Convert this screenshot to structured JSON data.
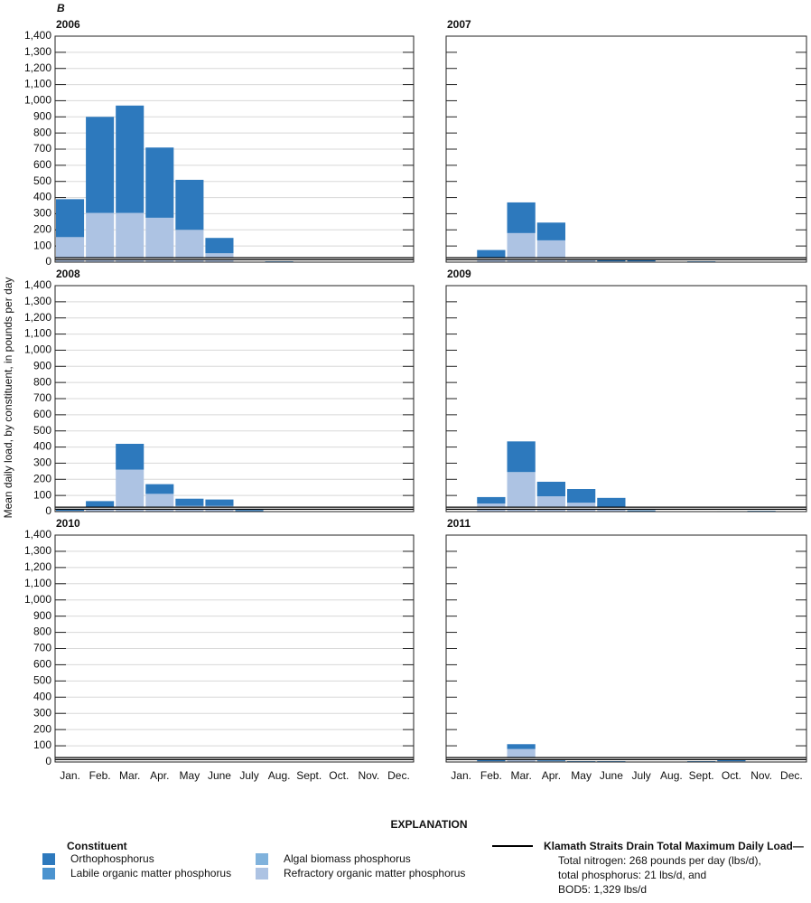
{
  "panel_label": "B",
  "chart_data": {
    "type": "bar",
    "stacked": true,
    "ylabel": "Mean daily load, by constituent, in pounds per day",
    "categories": [
      "Jan.",
      "Feb.",
      "Mar.",
      "Apr.",
      "May",
      "June",
      "July",
      "Aug.",
      "Sept.",
      "Oct.",
      "Nov.",
      "Dec."
    ],
    "ylim": [
      0,
      1400
    ],
    "yticks": [
      0,
      100,
      200,
      300,
      400,
      500,
      600,
      700,
      800,
      900,
      {
        "value": 1000,
        "label": "1,000"
      },
      {
        "value": 1100,
        "label": "1,100"
      },
      {
        "value": 1200,
        "label": "1,200"
      },
      {
        "value": 1300,
        "label": "1,300"
      },
      {
        "value": 1400,
        "label": "1,400"
      }
    ],
    "series": [
      {
        "name": "Orthophosphorus",
        "color": "#2d79bd"
      },
      {
        "name": "Labile organic matter phosphorus",
        "color": "#4b93cf"
      },
      {
        "name": "Algal biomass phosphorus",
        "color": "#80b2dc"
      },
      {
        "name": "Refractory organic matter phosphorus",
        "color": "#adc3e3"
      }
    ],
    "reference_line": 21,
    "panels": [
      {
        "title": "2006",
        "grid": true,
        "series": [
          {
            "values": [
              235,
              595,
              665,
              435,
              310,
              95,
              0,
              5,
              0,
              0,
              0,
              0
            ]
          },
          {
            "values": [
              0,
              0,
              0,
              0,
              0,
              0,
              0,
              0,
              0,
              0,
              0,
              0
            ]
          },
          {
            "values": [
              0,
              0,
              0,
              0,
              0,
              0,
              0,
              0,
              0,
              0,
              0,
              0
            ]
          },
          {
            "values": [
              155,
              305,
              305,
              275,
              200,
              55,
              0,
              0,
              0,
              0,
              0,
              0
            ]
          }
        ]
      },
      {
        "title": "2007",
        "grid": false,
        "series": [
          {
            "values": [
              0,
              45,
              190,
              110,
              20,
              10,
              7,
              0,
              5,
              0,
              0,
              0
            ]
          },
          {
            "values": [
              0,
              0,
              0,
              0,
              0,
              0,
              0,
              0,
              0,
              0,
              0,
              0
            ]
          },
          {
            "values": [
              0,
              0,
              0,
              0,
              0,
              0,
              0,
              0,
              0,
              0,
              0,
              0
            ]
          },
          {
            "values": [
              0,
              30,
              180,
              135,
              10,
              5,
              5,
              0,
              0,
              0,
              0,
              0
            ]
          }
        ]
      },
      {
        "title": "2008",
        "grid": true,
        "series": [
          {
            "values": [
              15,
              35,
              160,
              60,
              45,
              40,
              7,
              0,
              0,
              0,
              0,
              0
            ]
          },
          {
            "values": [
              0,
              0,
              0,
              0,
              0,
              0,
              0,
              0,
              0,
              0,
              0,
              0
            ]
          },
          {
            "values": [
              0,
              0,
              0,
              0,
              0,
              0,
              0,
              0,
              0,
              0,
              0,
              0
            ]
          },
          {
            "values": [
              5,
              30,
              260,
              110,
              35,
              35,
              3,
              0,
              0,
              0,
              0,
              0
            ]
          }
        ]
      },
      {
        "title": "2009",
        "grid": false,
        "series": [
          {
            "values": [
              0,
              40,
              190,
              90,
              85,
              60,
              8,
              0,
              0,
              3,
              5,
              0
            ]
          },
          {
            "values": [
              0,
              0,
              0,
              0,
              0,
              0,
              0,
              0,
              0,
              0,
              0,
              0
            ]
          },
          {
            "values": [
              0,
              0,
              0,
              0,
              0,
              0,
              0,
              0,
              0,
              0,
              0,
              0
            ]
          },
          {
            "values": [
              0,
              50,
              245,
              95,
              55,
              25,
              0,
              0,
              0,
              0,
              0,
              0
            ]
          }
        ]
      },
      {
        "title": "2010",
        "grid": true,
        "series": [
          {
            "values": [
              0,
              0,
              0,
              0,
              0,
              0,
              0,
              0,
              0,
              0,
              0,
              0
            ]
          },
          {
            "values": [
              0,
              0,
              0,
              0,
              0,
              0,
              0,
              0,
              0,
              0,
              0,
              0
            ]
          },
          {
            "values": [
              0,
              0,
              0,
              0,
              0,
              0,
              0,
              0,
              0,
              0,
              0,
              0
            ]
          },
          {
            "values": [
              0,
              0,
              0,
              0,
              0,
              0,
              0,
              0,
              0,
              0,
              0,
              0
            ]
          }
        ]
      },
      {
        "title": "2011",
        "grid": false,
        "series": [
          {
            "values": [
              0,
              7,
              30,
              5,
              5,
              5,
              0,
              0,
              5,
              10,
              0,
              0
            ]
          },
          {
            "values": [
              0,
              0,
              0,
              0,
              0,
              0,
              0,
              0,
              0,
              0,
              0,
              0
            ]
          },
          {
            "values": [
              0,
              0,
              0,
              0,
              0,
              0,
              0,
              0,
              0,
              0,
              0,
              0
            ]
          },
          {
            "values": [
              0,
              5,
              80,
              5,
              0,
              0,
              0,
              0,
              0,
              5,
              0,
              0
            ]
          }
        ]
      }
    ]
  },
  "explanation": {
    "title": "EXPLANATION",
    "legend_title": "Constituent",
    "tmdl_title": "Klamath Straits Drain Total Maximum Daily Load—",
    "tmdl_lines": [
      "Total nitrogen: 268 pounds per day (lbs/d),",
      "total phosphorus: 21 lbs/d, and",
      "BOD5: 1,329 lbs/d"
    ]
  }
}
